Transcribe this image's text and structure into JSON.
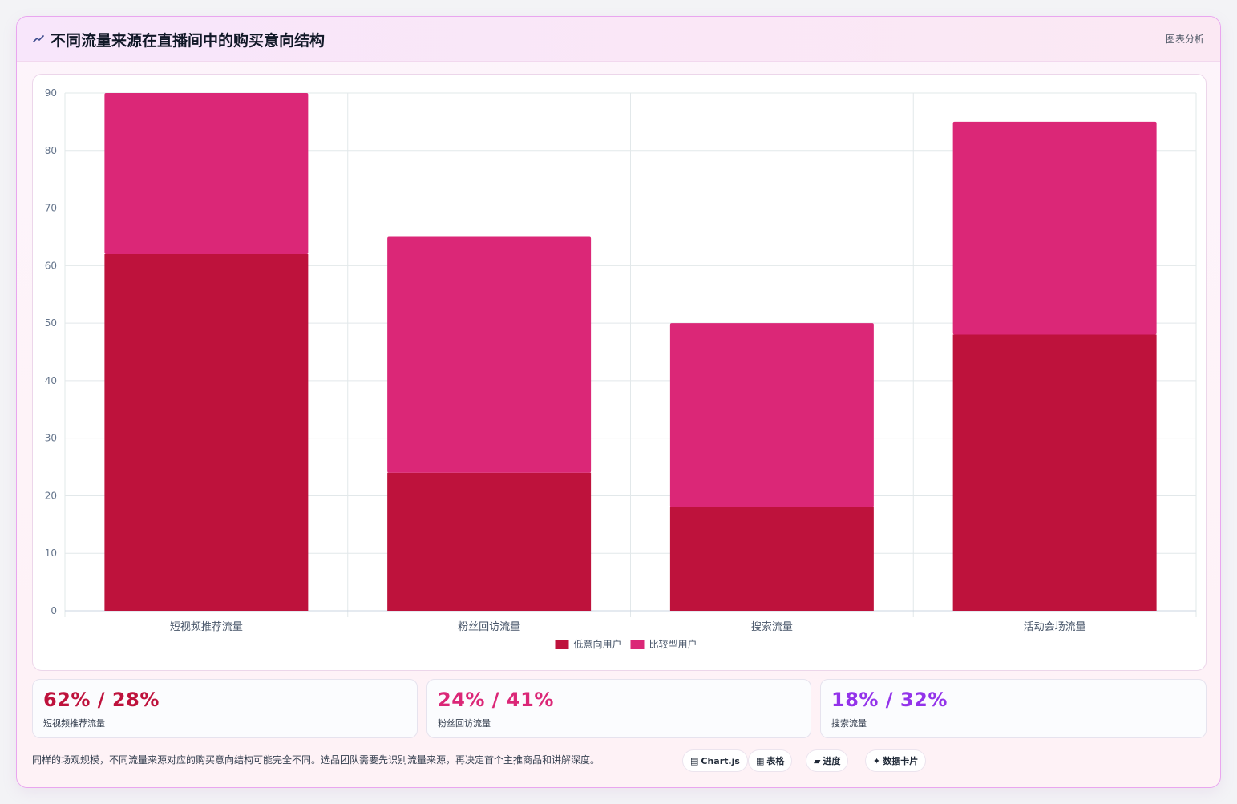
{
  "header": {
    "title": "不同流量来源在直播间中的购买意向结构",
    "tag": "图表分析"
  },
  "chart_data": {
    "type": "bar",
    "stacked": true,
    "categories": [
      "短视频推荐流量",
      "粉丝回访流量",
      "搜索流量",
      "活动会场流量"
    ],
    "series": [
      {
        "name": "低意向用户",
        "color": "#be123c",
        "values": [
          62,
          24,
          18,
          48
        ]
      },
      {
        "name": "比较型用户",
        "color": "#db2777",
        "values": [
          28,
          41,
          32,
          37
        ]
      }
    ],
    "ylim": [
      0,
      90
    ],
    "yticks": [
      0,
      10,
      20,
      30,
      40,
      50,
      60,
      70,
      80,
      90
    ],
    "grid": true,
    "legend": "bottom"
  },
  "stats": [
    {
      "value": "62% / 28%",
      "label": "短视频推荐流量",
      "color": "#be123c"
    },
    {
      "value": "24% / 41%",
      "label": "粉丝回访流量",
      "color": "#db2777"
    },
    {
      "value": "18% / 32%",
      "label": "搜索流量",
      "color": "#9333ea"
    }
  ],
  "footer": {
    "note": "同样的场观规模，不同流量来源对应的购买意向结构可能完全不同。选品团队需要先识别流量来源，再决定首个主推商品和讲解深度。",
    "badges": [
      {
        "icon": "▤",
        "label": "Chart.js"
      },
      {
        "icon": "▦",
        "label": "表格"
      },
      {
        "icon": "▰",
        "label": "进度"
      },
      {
        "icon": "✦",
        "label": "数据卡片"
      }
    ]
  }
}
